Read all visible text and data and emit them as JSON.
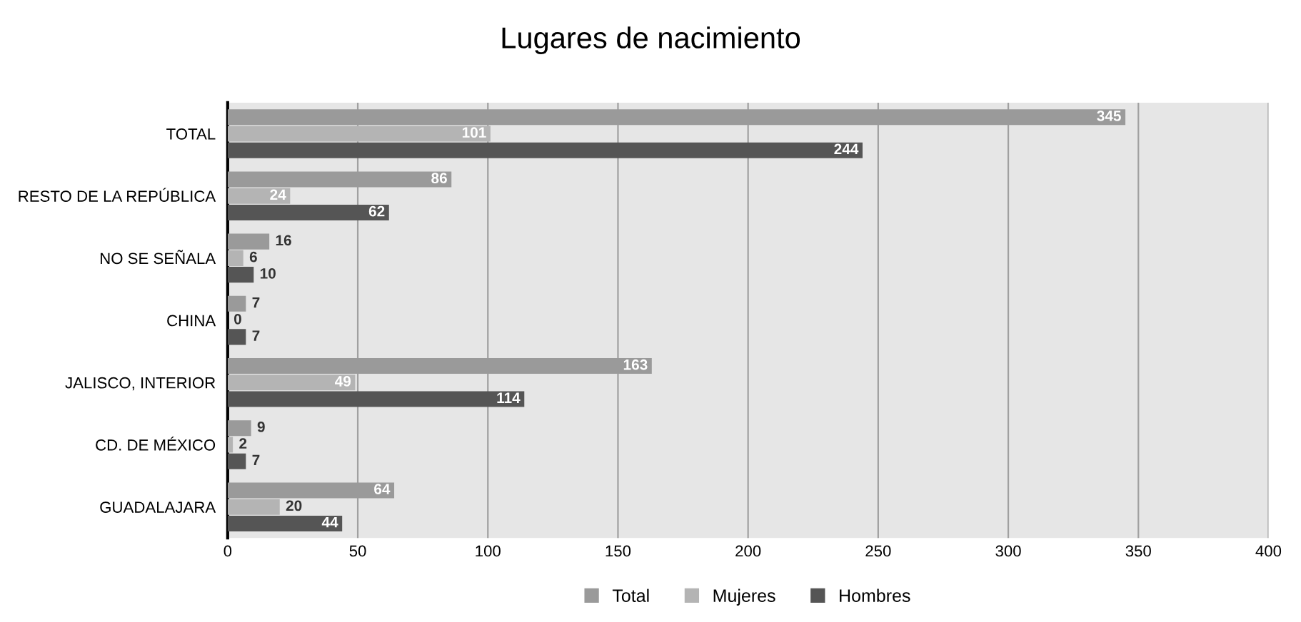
{
  "chart_data": {
    "type": "bar",
    "orientation": "horizontal",
    "title": "Lugares de nacimiento",
    "categories": [
      "TOTAL",
      "RESTO DE LA REPÚBLICA",
      "NO SE SEÑALA",
      "CHINA",
      "JALISCO, INTERIOR",
      "CD. DE MÉXICO",
      "GUADALAJARA"
    ],
    "series": [
      {
        "name": "Total",
        "color": "#9a9a9a",
        "values": [
          345,
          86,
          16,
          7,
          163,
          9,
          64
        ]
      },
      {
        "name": "Mujeres",
        "color": "#b4b4b4",
        "values": [
          101,
          24,
          6,
          0,
          49,
          2,
          20
        ]
      },
      {
        "name": "Hombres",
        "color": "#555555",
        "values": [
          244,
          62,
          10,
          7,
          114,
          7,
          44
        ]
      }
    ],
    "xlim": [
      0,
      400
    ],
    "xticks": [
      0,
      50,
      100,
      150,
      200,
      250,
      300,
      350,
      400
    ],
    "grid": "x",
    "legend": "bottom",
    "data_labels": true
  }
}
